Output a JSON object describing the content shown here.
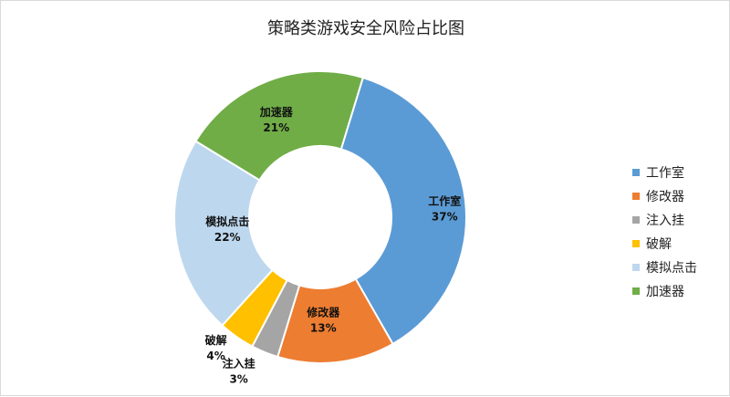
{
  "chart_data": {
    "type": "pie",
    "title": "策略类游戏安全风险占比图",
    "categories": [
      "工作室",
      "修改器",
      "注入挂",
      "破解",
      "模拟点击",
      "加速器"
    ],
    "values": [
      37,
      13,
      3,
      4,
      22,
      21
    ],
    "labels": [
      "37%",
      "13%",
      "3%",
      "4%",
      "22%",
      "21%"
    ],
    "colors": [
      "#5b9bd5",
      "#ed7d31",
      "#a5a5a5",
      "#ffc000",
      "#bdd7ee",
      "#70ad47"
    ],
    "donut": true,
    "legend_position": "right"
  }
}
